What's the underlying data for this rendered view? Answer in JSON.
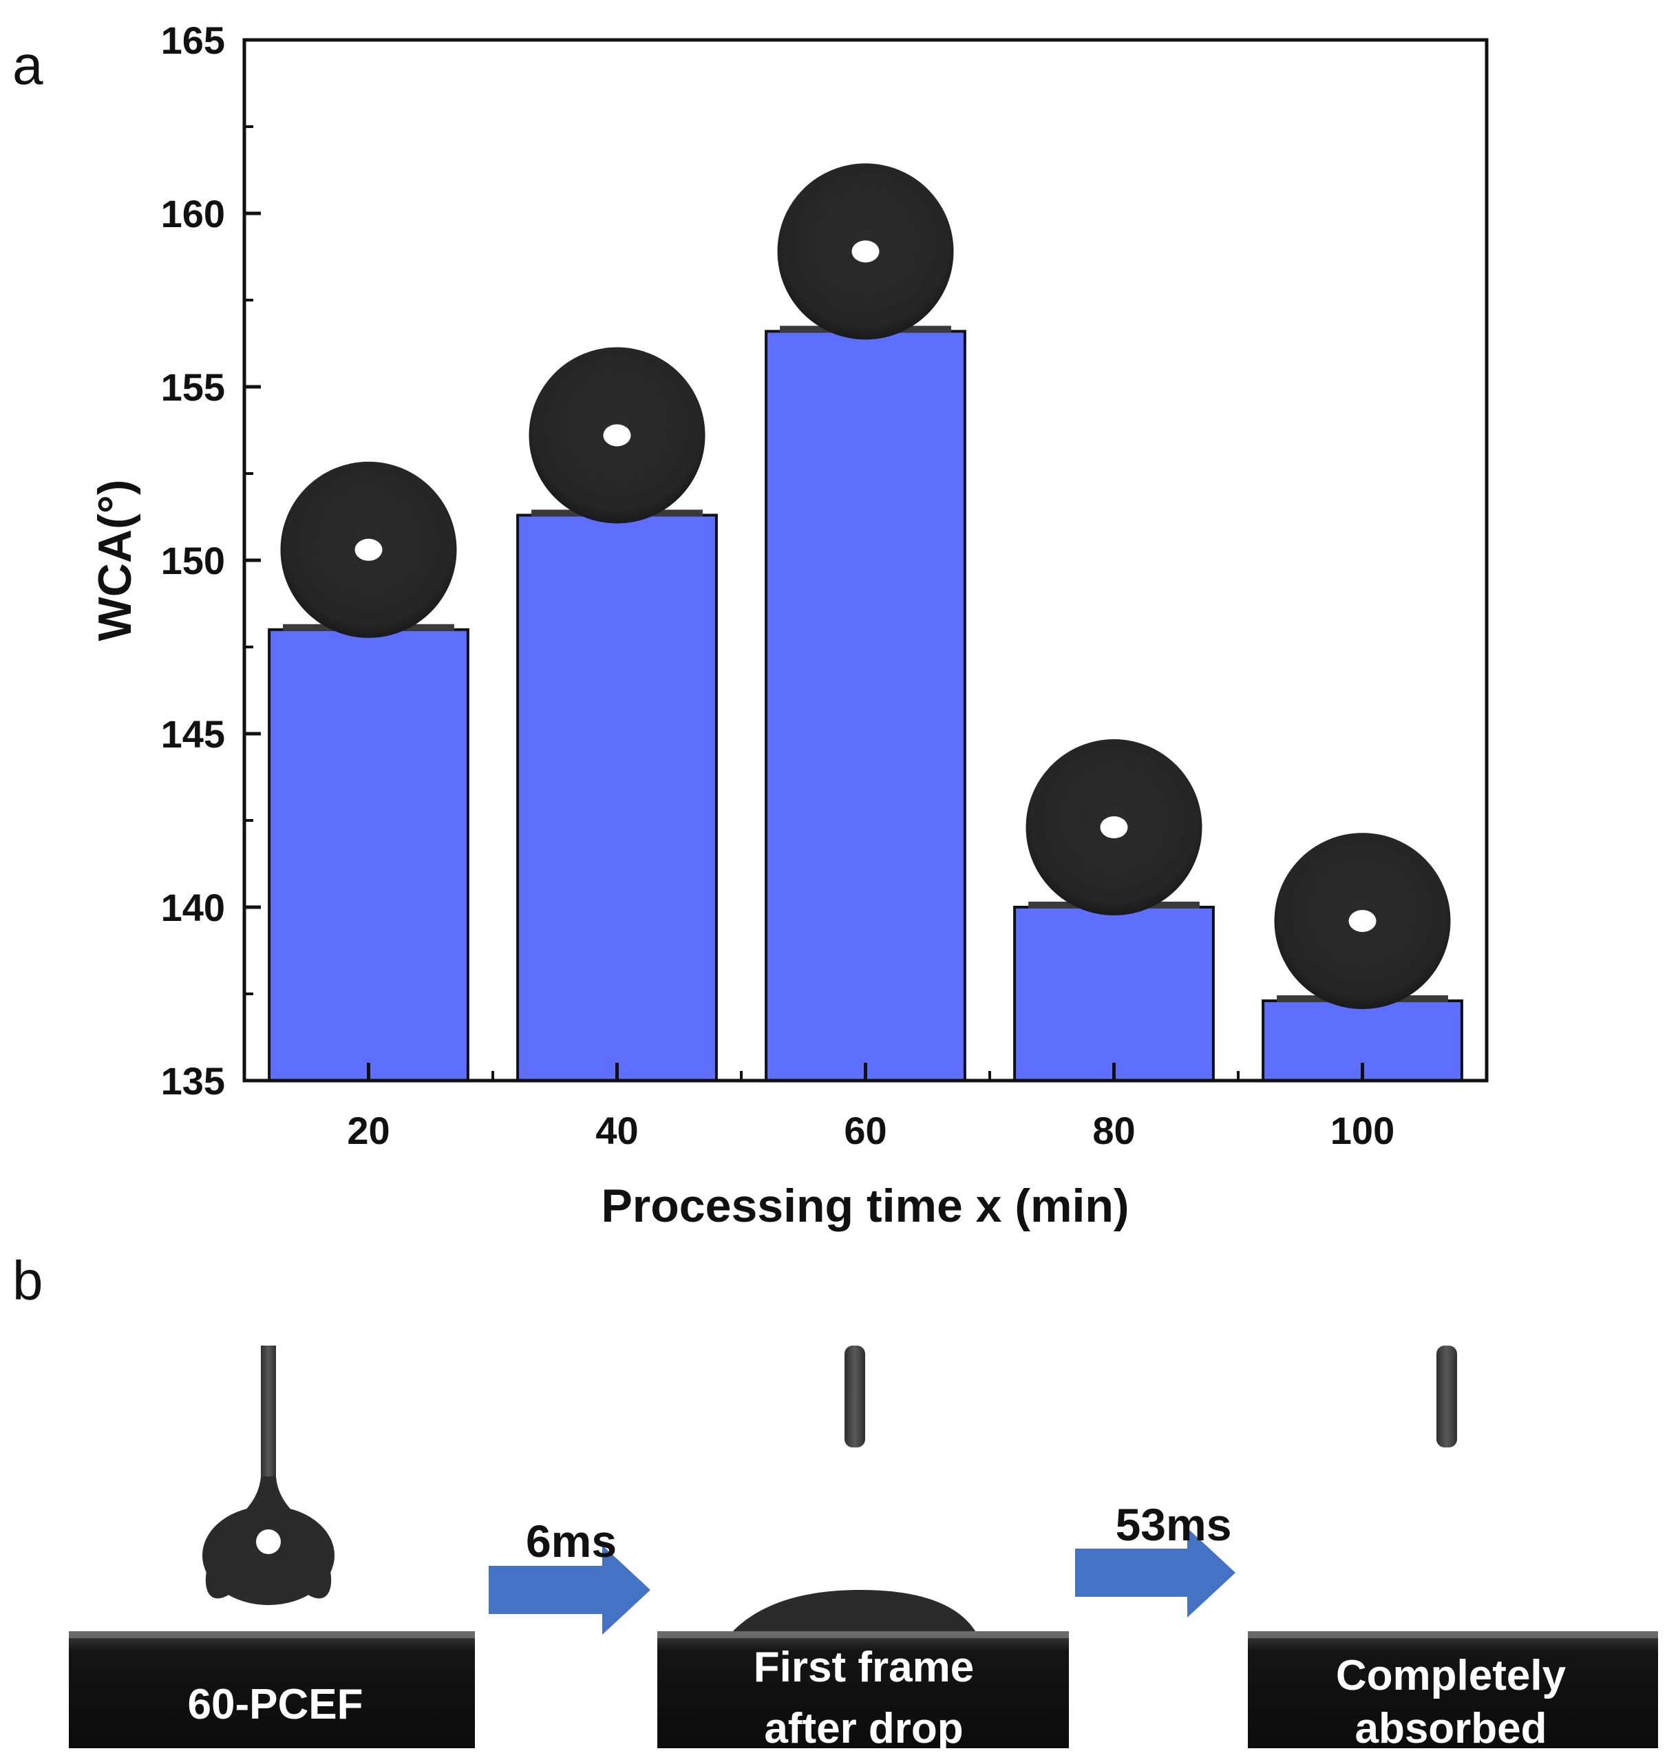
{
  "panels": {
    "a": "a",
    "b": "b"
  },
  "chart_data": {
    "type": "bar",
    "title": "",
    "xlabel": "Processing time x (min)",
    "ylabel": "WCA(°)",
    "categories": [
      "20",
      "40",
      "60",
      "80",
      "100"
    ],
    "values": [
      148,
      151.3,
      156.6,
      140,
      137.3
    ],
    "ylim": [
      135,
      165
    ],
    "yticks": [
      "135",
      "140",
      "145",
      "150",
      "155",
      "160",
      "165"
    ],
    "bar_color": "#5f6ffd",
    "droplet_color": "#252525",
    "grid": false
  },
  "sequence": {
    "samples": [
      {
        "label": "60-PCEF"
      },
      {
        "label": "First frame after drop",
        "line1": "First frame",
        "line2": "after drop"
      },
      {
        "label": "Completely absorbed",
        "line1": "Completely",
        "line2": "absorbed"
      }
    ],
    "arrows": [
      {
        "label": "6ms"
      },
      {
        "label": "53ms"
      }
    ],
    "arrow_color": "#4472c4"
  }
}
